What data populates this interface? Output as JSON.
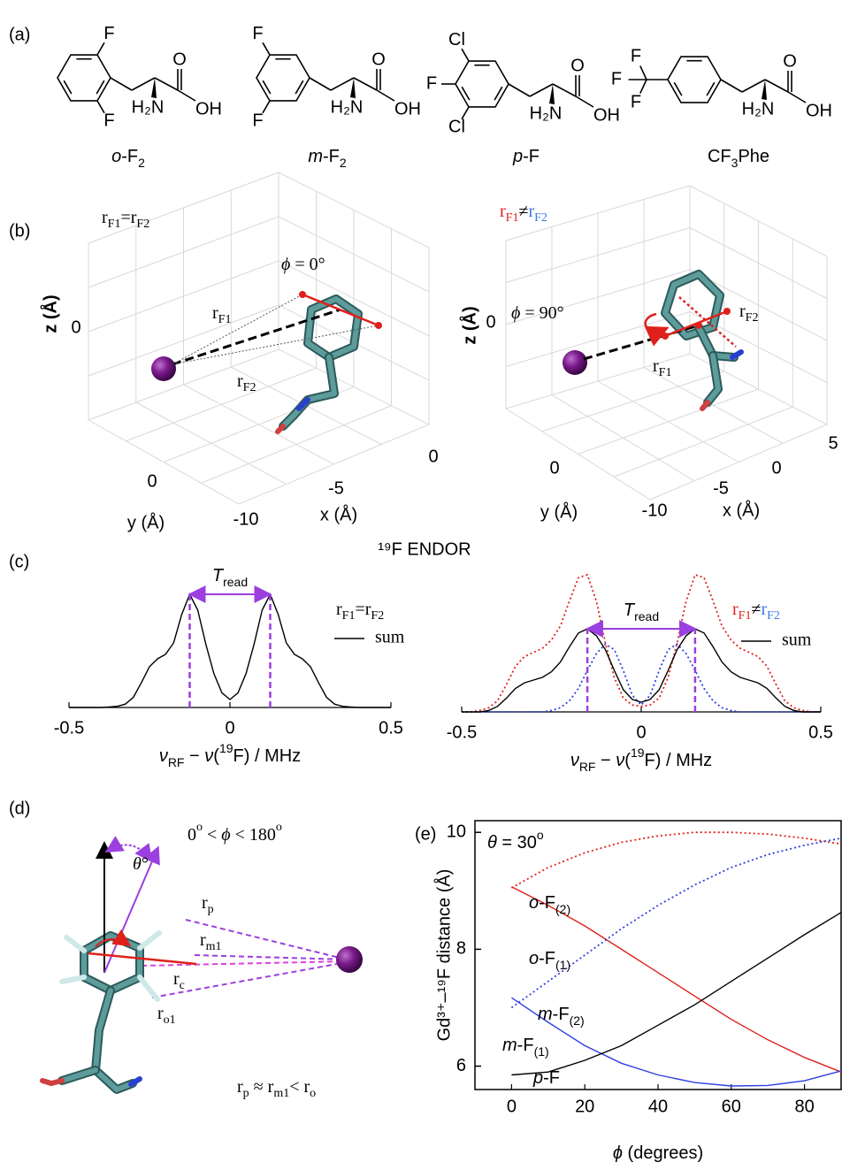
{
  "panel_a": {
    "label": "(a)",
    "molecules": [
      {
        "name": {
          "runs": [
            {
              "text": "o",
              "style": "italic"
            },
            {
              "text": "-F"
            },
            {
              "text": "2",
              "style": "sub"
            }
          ]
        },
        "atoms": [
          "F",
          "F",
          "H₂N",
          "O",
          "OH"
        ]
      },
      {
        "name": {
          "runs": [
            {
              "text": "m",
              "style": "italic"
            },
            {
              "text": "-F"
            },
            {
              "text": "2",
              "style": "sub"
            }
          ]
        },
        "atoms": [
          "F",
          "F",
          "H₂N",
          "O",
          "OH"
        ]
      },
      {
        "name": {
          "runs": [
            {
              "text": "p",
              "style": "italic"
            },
            {
              "text": "-F"
            }
          ]
        },
        "atoms": [
          "Cl",
          "F",
          "Cl",
          "H₂N",
          "O",
          "OH"
        ]
      },
      {
        "name": {
          "runs": [
            {
              "text": "CF"
            },
            {
              "text": "3",
              "style": "sub"
            },
            {
              "text": "Phe"
            }
          ]
        },
        "atoms": [
          "F",
          "F",
          "F",
          "H₂N",
          "O",
          "OH"
        ]
      }
    ]
  },
  "panel_b": {
    "label": "(b)",
    "left": {
      "equality": {
        "runs": [
          {
            "text": "r"
          },
          {
            "text": "F1",
            "style": "sub"
          },
          {
            "text": "="
          },
          {
            "text": "r"
          },
          {
            "text": "F2",
            "style": "sub"
          }
        ]
      },
      "angle": {
        "color": "#e0201b",
        "runs": [
          {
            "text": "ϕ",
            "style": "italic"
          },
          {
            "text": " = 0°"
          }
        ]
      },
      "r1": {
        "runs": [
          {
            "text": "r"
          },
          {
            "text": "F1",
            "style": "sub"
          }
        ]
      },
      "r2": {
        "runs": [
          {
            "text": "r"
          },
          {
            "text": "F2",
            "style": "sub"
          }
        ]
      },
      "z_label": "z (Å)",
      "z_tick": "0",
      "y_label": "y (Å)",
      "y_tick": "0",
      "x_label": "x (Å)",
      "x_ticks": [
        "0",
        "-5",
        "-10"
      ]
    },
    "right": {
      "equality": {
        "runs": [
          {
            "text": "r",
            "color": "#e0201b"
          },
          {
            "text": "F1",
            "style": "sub",
            "color": "#e0201b"
          },
          {
            "text": "≠"
          },
          {
            "text": "r",
            "color": "#3b78e7"
          },
          {
            "text": "F2",
            "style": "sub",
            "color": "#3b78e7"
          }
        ]
      },
      "angle": {
        "color": "#e0201b",
        "runs": [
          {
            "text": "ϕ",
            "style": "italic"
          },
          {
            "text": " = 90°"
          }
        ]
      },
      "r1": {
        "color": "#e0201b",
        "runs": [
          {
            "text": "r"
          },
          {
            "text": "F1",
            "style": "sub"
          }
        ]
      },
      "r2": {
        "color": "#3b78e7",
        "runs": [
          {
            "text": "r"
          },
          {
            "text": "F2",
            "style": "sub"
          }
        ]
      },
      "z_label": "z (Å)",
      "z_tick": "0",
      "y_label": "y (Å)",
      "y_tick": "0",
      "x_label": "x (Å)",
      "x_ticks": [
        "5",
        "0",
        "-5",
        "-10"
      ]
    }
  },
  "panel_c": {
    "label": "(c)",
    "title": "¹⁹F ENDOR",
    "title_color": "#b04be6"
  },
  "panel_d": {
    "label": "(d)",
    "range": {
      "color": "#e0201b",
      "runs": [
        {
          "text": "0"
        },
        {
          "text": "o",
          "style": "sup"
        },
        {
          "text": " < "
        },
        {
          "text": "ϕ",
          "style": "italic"
        },
        {
          "text": " < 180"
        },
        {
          "text": "o",
          "style": "sup"
        }
      ]
    },
    "theta": {
      "color": "#9b3fe0",
      "runs": [
        {
          "text": "θ",
          "style": "italic"
        },
        {
          "text": "°"
        }
      ]
    },
    "rp": {
      "color": "#9b3fe0",
      "runs": [
        {
          "text": "r"
        },
        {
          "text": "p",
          "style": "sub"
        }
      ]
    },
    "rm1": {
      "color": "#9b3fe0",
      "runs": [
        {
          "text": "r"
        },
        {
          "text": "m1",
          "style": "sub"
        }
      ]
    },
    "rc": {
      "color": "#e040e0",
      "runs": [
        {
          "text": "r"
        },
        {
          "text": "c",
          "style": "sub"
        }
      ]
    },
    "ro1": {
      "color": "#9b3fe0",
      "runs": [
        {
          "text": "r"
        },
        {
          "text": "o1",
          "style": "sub"
        }
      ]
    },
    "relation": {
      "color": "#9b3fe0",
      "runs": [
        {
          "text": "r"
        },
        {
          "text": "p",
          "style": "sub"
        },
        {
          "text": " ≈ r"
        },
        {
          "text": "m1",
          "style": "sub"
        },
        {
          "text": "< r"
        },
        {
          "text": "o",
          "style": "sub"
        }
      ]
    }
  },
  "chart_data": [
    {
      "type": "line",
      "x": [
        -0.5,
        -0.475,
        -0.45,
        -0.425,
        -0.4,
        -0.375,
        -0.35,
        -0.325,
        -0.3,
        -0.275,
        -0.25,
        -0.225,
        -0.2,
        -0.175,
        -0.15,
        -0.125,
        -0.1,
        -0.075,
        -0.05,
        -0.025,
        0,
        0.025,
        0.05,
        0.075,
        0.1,
        0.125,
        0.15,
        0.175,
        0.2,
        0.225,
        0.25,
        0.275,
        0.3,
        0.325,
        0.35,
        0.375,
        0.4,
        0.425,
        0.45,
        0.475,
        0.5
      ],
      "series": [
        {
          "name": "sum",
          "color": "#000000",
          "linestyle": "solid",
          "values": [
            0,
            0,
            0,
            0,
            0,
            0.005,
            0.01,
            0.03,
            0.09,
            0.22,
            0.36,
            0.43,
            0.47,
            0.57,
            0.82,
            1.0,
            0.86,
            0.56,
            0.3,
            0.13,
            0.07,
            0.13,
            0.3,
            0.56,
            0.86,
            1.0,
            0.82,
            0.57,
            0.47,
            0.43,
            0.36,
            0.22,
            0.09,
            0.03,
            0.01,
            0.005,
            0,
            0,
            0,
            0,
            0
          ]
        }
      ],
      "xlim": [
        -0.5,
        0.5
      ],
      "xticks": [
        -0.5,
        0,
        0.5
      ],
      "xlabel": {
        "runs": [
          {
            "text": "ν",
            "style": "italic"
          },
          {
            "text": "RF",
            "style": "sub"
          },
          {
            "text": " − "
          },
          {
            "text": "ν",
            "style": "italic"
          },
          {
            "text": "("
          },
          {
            "text": "19",
            "style": "sup"
          },
          {
            "text": "F) / MHz"
          }
        ]
      },
      "legend_title": {
        "runs": [
          {
            "text": "r"
          },
          {
            "text": "F1",
            "style": "sub"
          },
          {
            "text": "="
          },
          {
            "text": "r"
          },
          {
            "text": "F2",
            "style": "sub"
          }
        ]
      },
      "markers": [
        -0.125,
        0.125
      ],
      "marker_color": "#9b3fe0",
      "marker_label": {
        "color": "#9b3fe0",
        "runs": [
          {
            "text": "T",
            "style": "italic"
          },
          {
            "text": "read",
            "style": "sub"
          }
        ]
      }
    },
    {
      "type": "line",
      "x": [
        -0.5,
        -0.475,
        -0.45,
        -0.425,
        -0.4,
        -0.375,
        -0.35,
        -0.325,
        -0.3,
        -0.275,
        -0.25,
        -0.225,
        -0.2,
        -0.175,
        -0.15,
        -0.125,
        -0.1,
        -0.075,
        -0.05,
        -0.025,
        0,
        0.025,
        0.05,
        0.075,
        0.1,
        0.125,
        0.15,
        0.175,
        0.2,
        0.225,
        0.25,
        0.275,
        0.3,
        0.325,
        0.35,
        0.375,
        0.4,
        0.425,
        0.45,
        0.475,
        0.5
      ],
      "series": [
        {
          "color": "#e0201b",
          "linestyle": "dotted",
          "values": [
            0,
            0,
            0.01,
            0.03,
            0.08,
            0.2,
            0.33,
            0.4,
            0.43,
            0.46,
            0.52,
            0.62,
            0.8,
            0.97,
            0.99,
            0.8,
            0.5,
            0.25,
            0.1,
            0.05,
            0.04,
            0.05,
            0.1,
            0.25,
            0.5,
            0.8,
            0.99,
            0.97,
            0.8,
            0.62,
            0.52,
            0.46,
            0.43,
            0.4,
            0.33,
            0.2,
            0.08,
            0.03,
            0.01,
            0,
            0
          ]
        },
        {
          "color": "#2f3fe0",
          "linestyle": "dotted",
          "values": [
            0,
            0,
            0,
            0,
            0,
            0,
            0,
            0,
            0,
            0,
            0.01,
            0.03,
            0.08,
            0.17,
            0.3,
            0.42,
            0.49,
            0.45,
            0.3,
            0.12,
            0.05,
            0.12,
            0.3,
            0.45,
            0.49,
            0.42,
            0.3,
            0.17,
            0.08,
            0.03,
            0.01,
            0,
            0,
            0,
            0,
            0,
            0,
            0,
            0,
            0,
            0
          ]
        },
        {
          "name": "sum",
          "color": "#000000",
          "linestyle": "solid",
          "values": [
            0,
            0,
            0,
            0.01,
            0.04,
            0.1,
            0.17,
            0.21,
            0.23,
            0.25,
            0.29,
            0.36,
            0.47,
            0.57,
            0.6,
            0.55,
            0.45,
            0.3,
            0.16,
            0.09,
            0.07,
            0.09,
            0.16,
            0.3,
            0.45,
            0.55,
            0.6,
            0.57,
            0.47,
            0.36,
            0.29,
            0.25,
            0.23,
            0.21,
            0.17,
            0.1,
            0.04,
            0.01,
            0,
            0,
            0
          ]
        }
      ],
      "xlim": [
        -0.5,
        0.5
      ],
      "xticks": [
        -0.5,
        0,
        0.5
      ],
      "xlabel": {
        "runs": [
          {
            "text": "ν",
            "style": "italic"
          },
          {
            "text": "RF",
            "style": "sub"
          },
          {
            "text": " − "
          },
          {
            "text": "ν",
            "style": "italic"
          },
          {
            "text": "("
          },
          {
            "text": "19",
            "style": "sup"
          },
          {
            "text": "F) / MHz"
          }
        ]
      },
      "legend_title": {
        "runs": [
          {
            "text": "r",
            "color": "#e0201b"
          },
          {
            "text": "F1",
            "style": "sub",
            "color": "#e0201b"
          },
          {
            "text": "≠"
          },
          {
            "text": "r",
            "color": "#3b78e7"
          },
          {
            "text": "F2",
            "style": "sub",
            "color": "#3b78e7"
          }
        ]
      },
      "markers": [
        -0.15,
        0.15
      ],
      "marker_color": "#9b3fe0",
      "marker_label": {
        "color": "#9b3fe0",
        "runs": [
          {
            "text": "T",
            "style": "italic"
          },
          {
            "text": "read",
            "style": "sub"
          }
        ]
      }
    },
    {
      "type": "line",
      "panel_label": "(e)",
      "x": [
        0,
        10,
        20,
        30,
        40,
        50,
        60,
        70,
        80,
        90
      ],
      "series": [
        {
          "name": {
            "runs": [
              {
                "text": "o",
                "style": "italic"
              },
              {
                "text": "-F"
              },
              {
                "text": "(2)",
                "style": "sub"
              }
            ]
          },
          "color": "#e0201b",
          "linestyle": "dotted",
          "values": [
            9.05,
            9.4,
            9.65,
            9.83,
            9.94,
            10.0,
            10.0,
            9.97,
            9.9,
            9.8
          ]
        },
        {
          "name": {
            "runs": [
              {
                "text": "o",
                "style": "italic"
              },
              {
                "text": "-F"
              },
              {
                "text": "(1)",
                "style": "sub"
              }
            ]
          },
          "color": "#e0201b",
          "linestyle": "solid",
          "values": [
            9.07,
            8.75,
            8.4,
            8.0,
            7.6,
            7.2,
            6.8,
            6.45,
            6.15,
            5.9
          ]
        },
        {
          "name": {
            "runs": [
              {
                "text": "m",
                "style": "italic"
              },
              {
                "text": "-F"
              },
              {
                "text": "(2)",
                "style": "sub"
              }
            ]
          },
          "color": "#2f3fe0",
          "linestyle": "dotted",
          "values": [
            7.0,
            7.45,
            7.9,
            8.35,
            8.75,
            9.1,
            9.4,
            9.62,
            9.78,
            9.9
          ]
        },
        {
          "name": {
            "runs": [
              {
                "text": "m",
                "style": "italic"
              },
              {
                "text": "-F"
              },
              {
                "text": "(1)",
                "style": "sub"
              }
            ]
          },
          "color": "#2f3fe0",
          "linestyle": "solid",
          "values": [
            7.17,
            6.75,
            6.35,
            6.05,
            5.85,
            5.72,
            5.66,
            5.67,
            5.75,
            5.92
          ]
        },
        {
          "name": {
            "runs": [
              {
                "text": "p",
                "style": "italic"
              },
              {
                "text": "-F"
              }
            ]
          },
          "color": "#000000",
          "linestyle": "solid",
          "values": [
            5.85,
            5.9,
            6.1,
            6.35,
            6.7,
            7.05,
            7.45,
            7.85,
            8.25,
            8.63
          ]
        }
      ],
      "xlim": [
        -10,
        90
      ],
      "xticks": [
        0,
        20,
        40,
        60,
        80
      ],
      "ylim": [
        5.6,
        10.2
      ],
      "yticks": [
        6,
        8,
        10
      ],
      "xlabel": {
        "runs": [
          {
            "text": "ϕ",
            "style": "italic"
          },
          {
            "text": " (degrees)"
          }
        ]
      },
      "ylabel": "Gd³⁺–¹⁹F distance (Å)",
      "annotation": {
        "runs": [
          {
            "text": "θ",
            "style": "italic"
          },
          {
            "text": " = 30"
          },
          {
            "text": "o",
            "style": "sup"
          }
        ]
      }
    }
  ]
}
